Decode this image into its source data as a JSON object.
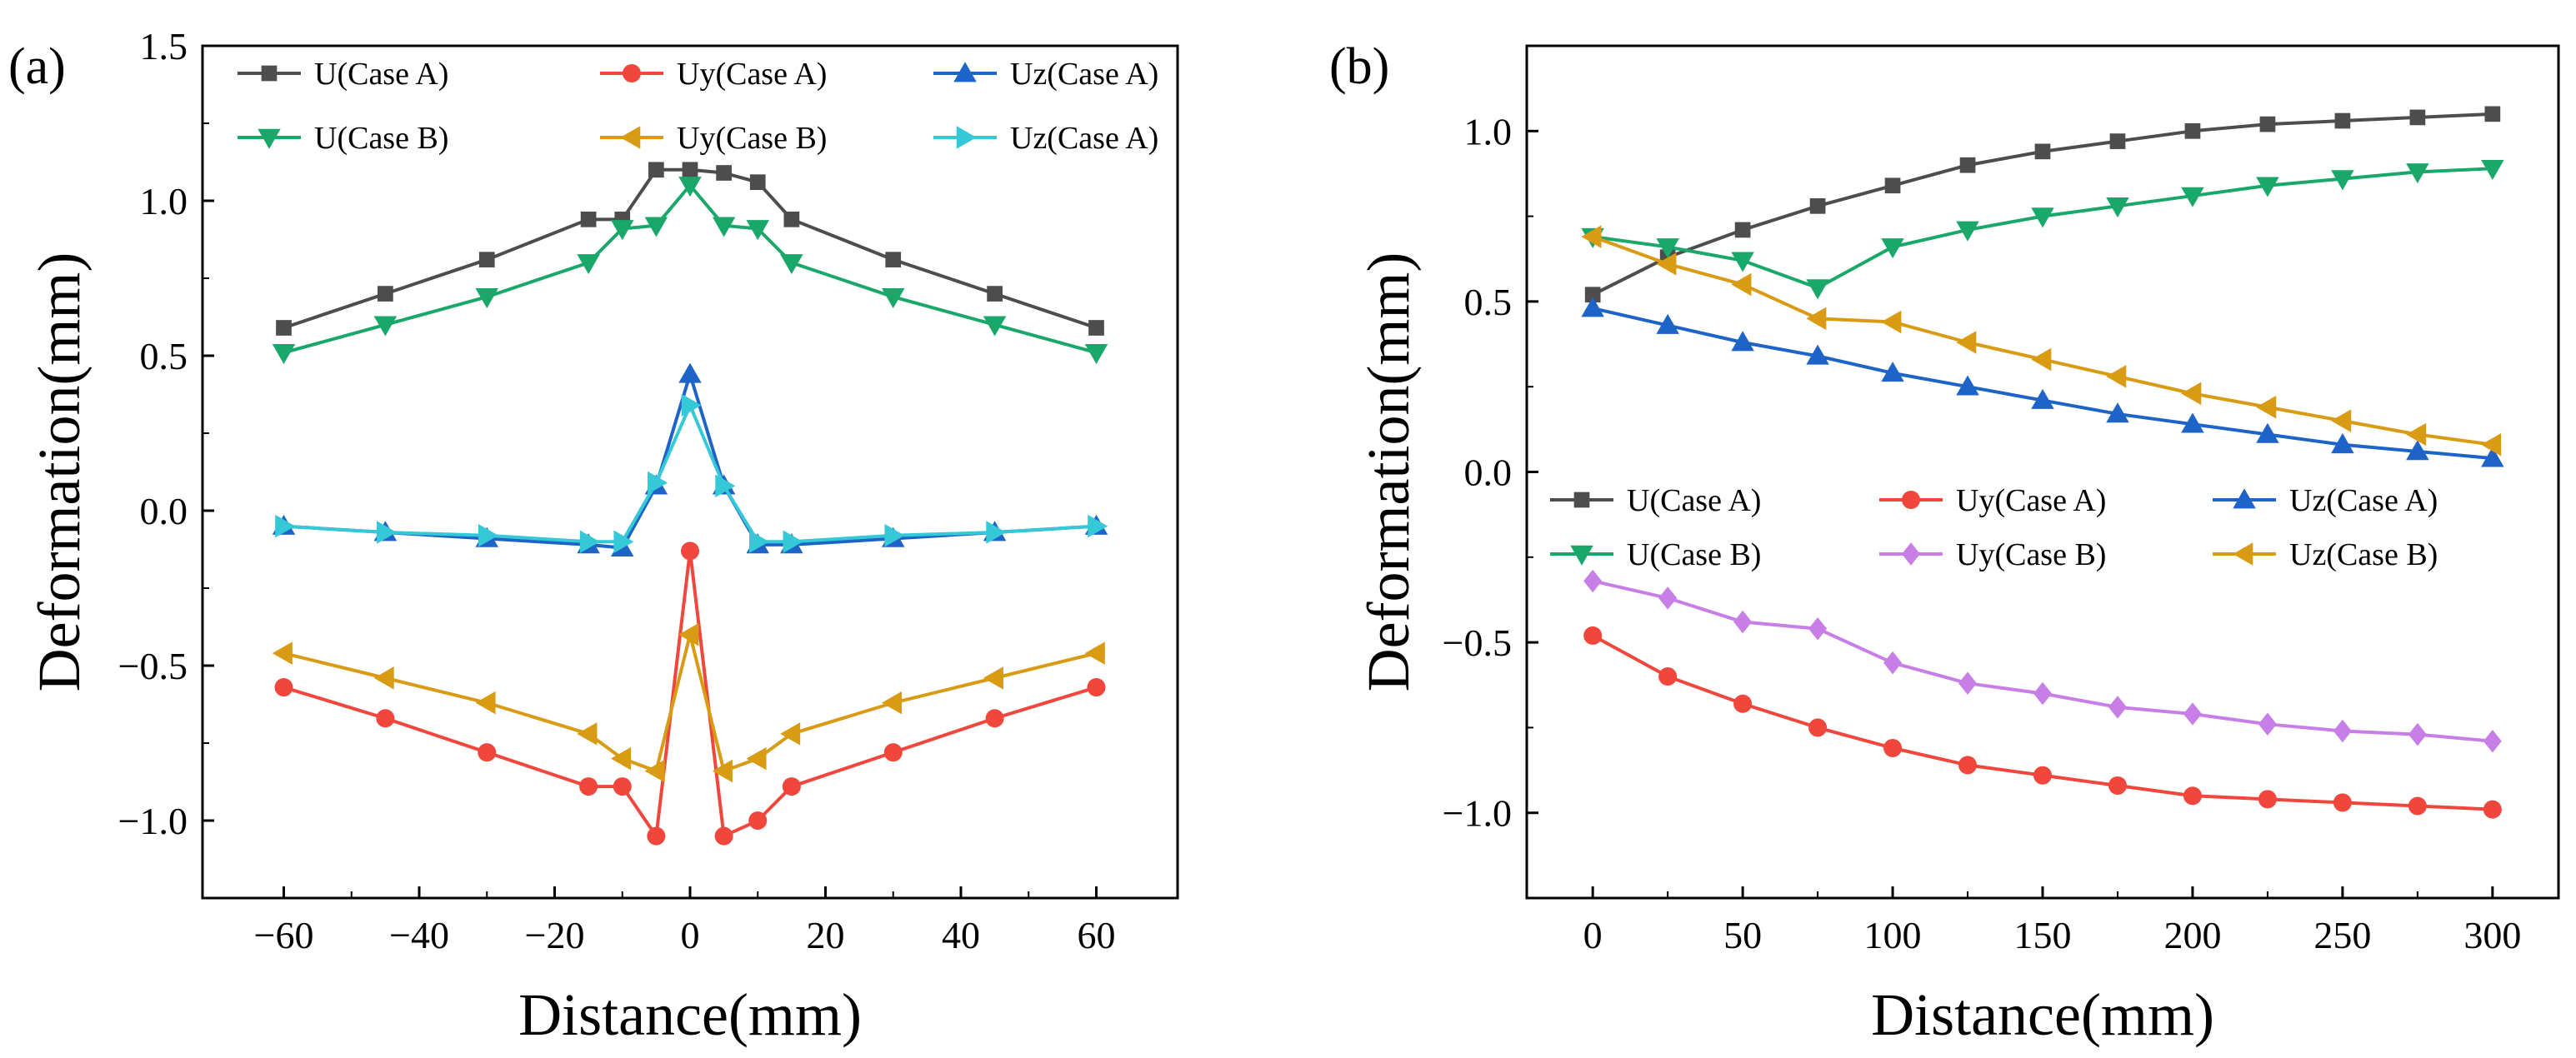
{
  "figure": {
    "panel_labels": [
      "(a)",
      "(b)"
    ]
  },
  "chart_data": [
    {
      "type": "line",
      "panel": "(a)",
      "xlabel": "Distance(mm)",
      "ylabel": "Deformation(mm)",
      "xlim": [
        -72,
        72
      ],
      "ylim": [
        -1.25,
        1.5
      ],
      "xticks": [
        -60,
        -40,
        -20,
        0,
        20,
        40,
        60
      ],
      "yticks": [
        -1.0,
        -0.5,
        0.0,
        0.5,
        1.0,
        1.5
      ],
      "ytick_labels": [
        "−1.0",
        "−0.5",
        "0.0",
        "0.5",
        "1.0",
        "1.5"
      ],
      "xtick_labels": [
        "−60",
        "−40",
        "−20",
        "0",
        "20",
        "40",
        "60"
      ],
      "legend_placement": "top",
      "series": [
        {
          "name": "U(Case A)",
          "color": "#4d4d4d",
          "marker": "square",
          "x": [
            -60,
            -45,
            -30,
            -15,
            -10,
            -5,
            0,
            5,
            10,
            15,
            30,
            45,
            60
          ],
          "y": [
            0.59,
            0.7,
            0.81,
            0.94,
            0.94,
            1.1,
            1.1,
            1.09,
            1.06,
            0.94,
            0.81,
            0.7,
            0.59
          ]
        },
        {
          "name": "Uy(Case A)",
          "color": "#f0463c",
          "marker": "circle",
          "x": [
            -60,
            -45,
            -30,
            -15,
            -10,
            -5,
            0,
            5,
            10,
            15,
            30,
            45,
            60
          ],
          "y": [
            -0.57,
            -0.67,
            -0.78,
            -0.89,
            -0.89,
            -1.05,
            -0.13,
            -1.05,
            -1.0,
            -0.89,
            -0.78,
            -0.67,
            -0.57
          ]
        },
        {
          "name": "Uz(Case A)",
          "color": "#1e64c8",
          "marker": "triangle-up",
          "x": [
            -60,
            -45,
            -30,
            -15,
            -10,
            -5,
            0,
            5,
            10,
            15,
            30,
            45,
            60
          ],
          "y": [
            -0.05,
            -0.07,
            -0.09,
            -0.11,
            -0.12,
            0.08,
            0.44,
            0.08,
            -0.11,
            -0.11,
            -0.09,
            -0.07,
            -0.05
          ]
        },
        {
          "name": "U(Case B)",
          "color": "#1aa86a",
          "marker": "triangle-down",
          "x": [
            -60,
            -45,
            -30,
            -15,
            -10,
            -5,
            0,
            5,
            10,
            15,
            30,
            45,
            60
          ],
          "y": [
            0.51,
            0.6,
            0.69,
            0.8,
            0.91,
            0.92,
            1.05,
            0.92,
            0.91,
            0.8,
            0.69,
            0.6,
            0.51
          ]
        },
        {
          "name": "Uy(Case B)",
          "color": "#d99a14",
          "marker": "triangle-left",
          "x": [
            -60,
            -45,
            -30,
            -15,
            -10,
            -5,
            0,
            5,
            10,
            15,
            30,
            45,
            60
          ],
          "y": [
            -0.46,
            -0.54,
            -0.62,
            -0.72,
            -0.8,
            -0.84,
            -0.4,
            -0.84,
            -0.8,
            -0.72,
            -0.62,
            -0.54,
            -0.46
          ]
        },
        {
          "name": "Uz(Case A)",
          "color": "#35c8d6",
          "marker": "triangle-right",
          "x": [
            -60,
            -45,
            -30,
            -15,
            -10,
            -5,
            0,
            5,
            10,
            15,
            30,
            45,
            60
          ],
          "y": [
            -0.05,
            -0.07,
            -0.08,
            -0.1,
            -0.1,
            0.09,
            0.34,
            0.08,
            -0.1,
            -0.1,
            -0.08,
            -0.07,
            -0.05
          ]
        }
      ]
    },
    {
      "type": "line",
      "panel": "(b)",
      "xlabel": "Distance(mm)",
      "ylabel": "Deformation(mm)",
      "xlim": [
        -22,
        322
      ],
      "ylim": [
        -1.25,
        1.25
      ],
      "xticks": [
        0,
        50,
        100,
        150,
        200,
        250,
        300
      ],
      "yticks": [
        -1.0,
        -0.5,
        0.0,
        0.5,
        1.0
      ],
      "ytick_labels": [
        "−1.0",
        "−0.5",
        "0.0",
        "0.5",
        "1.0"
      ],
      "xtick_labels": [
        "0",
        "50",
        "100",
        "150",
        "200",
        "250",
        "300"
      ],
      "legend_placement": "center",
      "series": [
        {
          "name": "U(Case A)",
          "color": "#4d4d4d",
          "marker": "square",
          "x": [
            0,
            25,
            50,
            75,
            100,
            125,
            150,
            175,
            200,
            225,
            250,
            275,
            300
          ],
          "y": [
            0.52,
            0.63,
            0.71,
            0.78,
            0.84,
            0.9,
            0.94,
            0.97,
            1.0,
            1.02,
            1.03,
            1.04,
            1.05
          ]
        },
        {
          "name": "Uy(Case A)",
          "color": "#f0463c",
          "marker": "circle",
          "x": [
            0,
            25,
            50,
            75,
            100,
            125,
            150,
            175,
            200,
            225,
            250,
            275,
            300
          ],
          "y": [
            -0.48,
            -0.6,
            -0.68,
            -0.75,
            -0.81,
            -0.86,
            -0.89,
            -0.92,
            -0.95,
            -0.96,
            -0.97,
            -0.98,
            -0.99
          ]
        },
        {
          "name": "Uz(Case A)",
          "color": "#1e64c8",
          "marker": "triangle-up",
          "x": [
            0,
            25,
            50,
            75,
            100,
            125,
            150,
            175,
            200,
            225,
            250,
            275,
            300
          ],
          "y": [
            0.48,
            0.43,
            0.38,
            0.34,
            0.29,
            0.25,
            0.21,
            0.17,
            0.14,
            0.11,
            0.08,
            0.06,
            0.04
          ]
        },
        {
          "name": "U(Case B)",
          "color": "#1aa86a",
          "marker": "triangle-down",
          "x": [
            0,
            25,
            50,
            75,
            100,
            125,
            150,
            175,
            200,
            225,
            250,
            275,
            300
          ],
          "y": [
            0.69,
            0.66,
            0.62,
            0.54,
            0.66,
            0.71,
            0.75,
            0.78,
            0.81,
            0.84,
            0.86,
            0.88,
            0.89
          ]
        },
        {
          "name": "Uy(Case B)",
          "color": "#c77ee6",
          "marker": "diamond",
          "x": [
            0,
            25,
            50,
            75,
            100,
            125,
            150,
            175,
            200,
            225,
            250,
            275,
            300
          ],
          "y": [
            -0.32,
            -0.37,
            -0.44,
            -0.46,
            -0.56,
            -0.62,
            -0.65,
            -0.69,
            -0.71,
            -0.74,
            -0.76,
            -0.77,
            -0.79
          ]
        },
        {
          "name": "Uz(Case B)",
          "color": "#d99a14",
          "marker": "triangle-left",
          "x": [
            0,
            25,
            50,
            75,
            100,
            125,
            150,
            175,
            200,
            225,
            250,
            275,
            300
          ],
          "y": [
            0.69,
            0.61,
            0.55,
            0.45,
            0.44,
            0.38,
            0.33,
            0.28,
            0.23,
            0.19,
            0.15,
            0.11,
            0.08
          ]
        }
      ]
    }
  ]
}
